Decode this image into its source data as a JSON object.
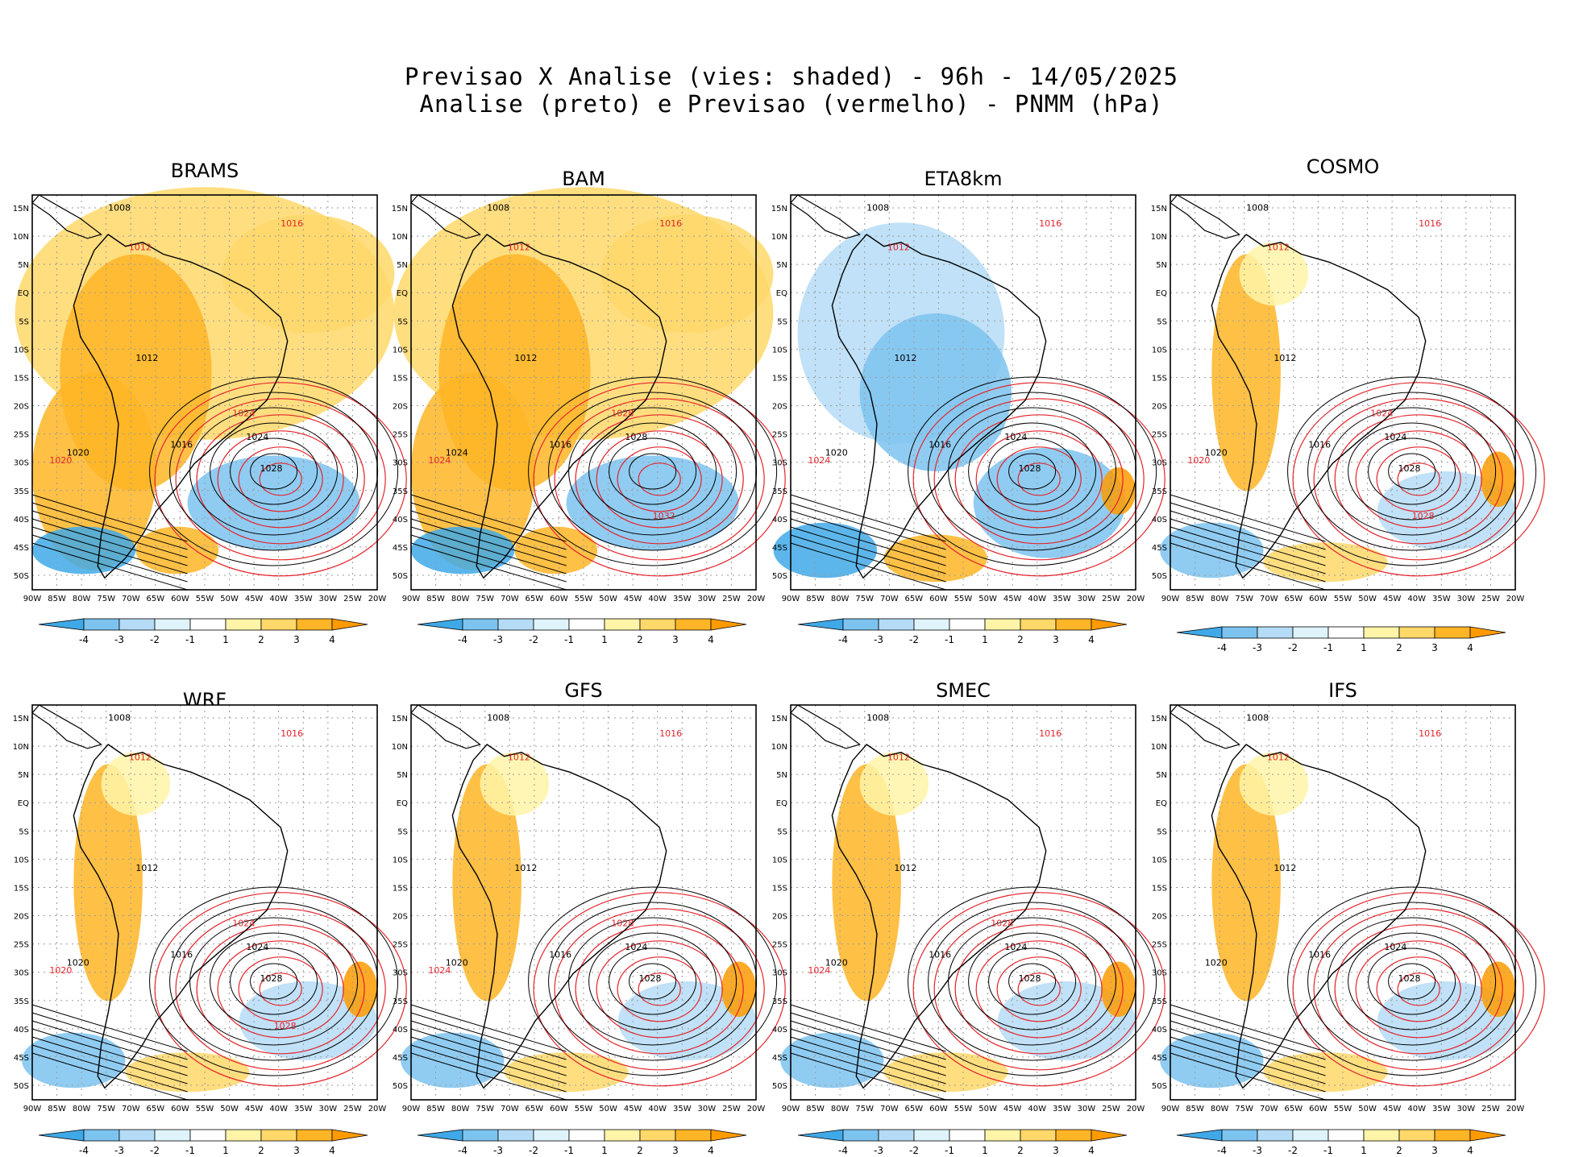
{
  "title": {
    "line1": "Previsao X Analise (vies: shaded) - 96h - 14/05/2025",
    "line2": "Analise (preto) e Previsao (vermelho) - PNMM (hPa)"
  },
  "axes": {
    "lat_labels": [
      "15N",
      "10N",
      "5N",
      "EQ",
      "5S",
      "10S",
      "15S",
      "20S",
      "25S",
      "30S",
      "35S",
      "40S",
      "45S",
      "50S"
    ],
    "lon_labels": [
      "90W",
      "85W",
      "80W",
      "75W",
      "70W",
      "65W",
      "60W",
      "55W",
      "50W",
      "45W",
      "40W",
      "35W",
      "30W",
      "25W",
      "20W"
    ]
  },
  "colorbar": {
    "labels": [
      "-4",
      "-3",
      "-2",
      "-1",
      "1",
      "2",
      "3",
      "4"
    ],
    "colors": [
      "#3fa9e8",
      "#7cc3f0",
      "#b5dcf6",
      "#dff3fb",
      "#ffffff",
      "#fff4a8",
      "#ffd86a",
      "#ffb526",
      "#ff9b00"
    ]
  },
  "colors": {
    "analysis_contour": "#000000",
    "forecast_contour": "#e3242b",
    "coastline": "#000000"
  },
  "panels": [
    {
      "name": "BRAMS",
      "analysis_labels": [
        "1008",
        "1012",
        "1016",
        "1020",
        "1024",
        "1028"
      ],
      "forecast_labels": [
        "1012",
        "1016",
        "1020",
        "1024"
      ],
      "bias": "positive"
    },
    {
      "name": "BAM",
      "analysis_labels": [
        "1008",
        "1012",
        "1016",
        "1024",
        "1028"
      ],
      "forecast_labels": [
        "1012",
        "1016",
        "1024",
        "1028",
        "1032"
      ],
      "bias": "positive"
    },
    {
      "name": "ETA8km",
      "analysis_labels": [
        "1008",
        "1012",
        "1016",
        "1020",
        "1024",
        "1028"
      ],
      "forecast_labels": [
        "1012",
        "1016",
        "1024"
      ],
      "bias": "negative"
    },
    {
      "name": "COSMO",
      "analysis_labels": [
        "1008",
        "1012",
        "1016",
        "1020",
        "1024",
        "1028"
      ],
      "forecast_labels": [
        "1012",
        "1016",
        "1020",
        "1024",
        "1028"
      ],
      "bias": "mixed"
    },
    {
      "name": "WRF",
      "analysis_labels": [
        "1008",
        "1012",
        "1016",
        "1020",
        "1024",
        "1028"
      ],
      "forecast_labels": [
        "1012",
        "1016",
        "1020",
        "1024",
        "1028"
      ],
      "bias": "mixed"
    },
    {
      "name": "GFS",
      "analysis_labels": [
        "1008",
        "1012",
        "1016",
        "1020",
        "1024",
        "1028"
      ],
      "forecast_labels": [
        "1012",
        "1016",
        "1024",
        "1028"
      ],
      "bias": "mixed"
    },
    {
      "name": "SMEC",
      "analysis_labels": [
        "1008",
        "1012",
        "1016",
        "1020",
        "1024",
        "1028"
      ],
      "forecast_labels": [
        "1012",
        "1016",
        "1024",
        "1028"
      ],
      "bias": "mixed"
    },
    {
      "name": "IFS",
      "analysis_labels": [
        "1008",
        "1012",
        "1016",
        "1020",
        "1024",
        "1028"
      ],
      "forecast_labels": [
        "1012",
        "1016"
      ],
      "bias": "mixed"
    }
  ]
}
